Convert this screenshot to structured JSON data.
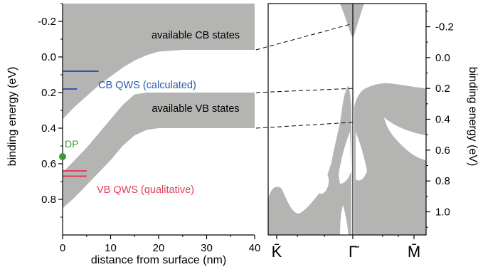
{
  "colors": {
    "band_fill": "#b4b5b3",
    "frame": "#000000",
    "cb_qws": "#2a5aa8",
    "vb_qws": "#e23c5a",
    "dp": "#3a9a3a",
    "leader": "#000000"
  },
  "chart_data": [
    {
      "type": "area",
      "panel": "left",
      "xlabel": "distance from surface (nm)",
      "ylabel": "binding energy (eV)",
      "xlim": [
        0,
        40
      ],
      "ylim": [
        -0.3,
        1.0
      ],
      "y_inverted": true,
      "x_ticks": [
        "0",
        "10",
        "20",
        "30",
        "40"
      ],
      "y_ticks": [
        "-0.2",
        "0.0",
        "0.2",
        "0.4",
        "0.6",
        "0.8"
      ],
      "x_tick_values": [
        0,
        10,
        20,
        30,
        40
      ],
      "y_tick_values": [
        -0.2,
        0.0,
        0.2,
        0.4,
        0.6,
        0.8
      ],
      "series": [
        {
          "name": "available CB states",
          "shade": "above",
          "x": [
            0,
            2.5,
            5,
            7.5,
            10,
            12.5,
            15,
            17.5,
            20,
            25,
            30,
            35,
            40
          ],
          "edge": [
            0.35,
            0.28,
            0.22,
            0.16,
            0.11,
            0.06,
            0.02,
            -0.01,
            -0.03,
            -0.04,
            -0.04,
            -0.04,
            -0.04
          ]
        },
        {
          "name": "available VB states",
          "x": [
            0,
            2.5,
            5,
            7.5,
            10,
            12.5,
            15,
            17.5,
            20,
            25,
            30,
            35,
            40
          ],
          "top": [
            0.65,
            0.58,
            0.51,
            0.43,
            0.35,
            0.27,
            0.21,
            0.2,
            0.2,
            0.2,
            0.2,
            0.2,
            0.2
          ],
          "bottom": [
            0.85,
            0.79,
            0.72,
            0.65,
            0.58,
            0.5,
            0.44,
            0.41,
            0.4,
            0.4,
            0.4,
            0.4,
            0.4
          ]
        }
      ],
      "lines": [
        {
          "name": "CB QWS (calculated)",
          "energies": [
            0.08,
            0.18
          ],
          "x_end": [
            7.5,
            3
          ]
        },
        {
          "name": "VB QWS (qualitative)",
          "energies": [
            0.64,
            0.67
          ],
          "x_end": [
            5,
            5
          ]
        }
      ],
      "points": [
        {
          "name": "DP",
          "x": 0,
          "y": 0.56
        }
      ],
      "annotations": [
        "available CB states",
        "available VB states",
        "CB QWS (calculated)",
        "VB QWS (qualitative)",
        "DP"
      ]
    },
    {
      "type": "area",
      "panel": "right",
      "ylabel": "binding energy (eV)",
      "ylim": [
        -0.35,
        1.15
      ],
      "y_inverted": true,
      "y_ticks": [
        "-0.2",
        "0.0",
        "0.2",
        "0.4",
        "0.6",
        "0.8",
        "1.0"
      ],
      "y_tick_values": [
        -0.2,
        0.0,
        0.2,
        0.4,
        0.6,
        0.8,
        1.0
      ],
      "x_ticks": [
        "K̄",
        "Γ̄",
        "M̄"
      ],
      "x_tick_values": [
        0,
        0.5,
        1
      ],
      "markers": {
        "cb_edge": -0.22,
        "vb_edge": 0.2,
        "vb_bottom": 0.42
      }
    }
  ]
}
